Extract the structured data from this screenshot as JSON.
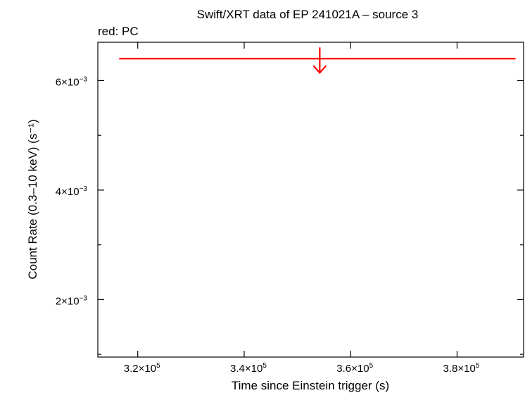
{
  "chart_data": {
    "type": "scatter",
    "title": "Swift/XRT data of EP 241021A – source 3",
    "subtitle": "red: PC",
    "xlabel": "Time since Einstein trigger (s)",
    "ylabel": "Count Rate (0.3–10 keV) (s⁻¹)",
    "xlim": [
      312500,
      392500
    ],
    "ylim": [
      0.00095,
      0.0067
    ],
    "x_ticks": [
      {
        "value": 320000,
        "mant": "3.2",
        "exp": "5"
      },
      {
        "value": 340000,
        "mant": "3.4",
        "exp": "5"
      },
      {
        "value": 360000,
        "mant": "3.6",
        "exp": "5"
      },
      {
        "value": 380000,
        "mant": "3.8",
        "exp": "5"
      }
    ],
    "y_ticks": [
      {
        "value": 0.002,
        "mant": "2",
        "exp": "−3"
      },
      {
        "value": 0.004,
        "mant": "4",
        "exp": "−3"
      },
      {
        "value": 0.006,
        "mant": "6",
        "exp": "−3"
      }
    ],
    "y_minor_ticks": [
      0.001,
      0.003,
      0.005
    ],
    "x_times_sign": "×10",
    "grid": false,
    "series": [
      {
        "color": "#ff0000",
        "points": [
          {
            "x": 354200,
            "x_lo": 316500,
            "x_hi": 391000,
            "y": 0.0064,
            "upper_limit": true
          }
        ]
      }
    ]
  }
}
